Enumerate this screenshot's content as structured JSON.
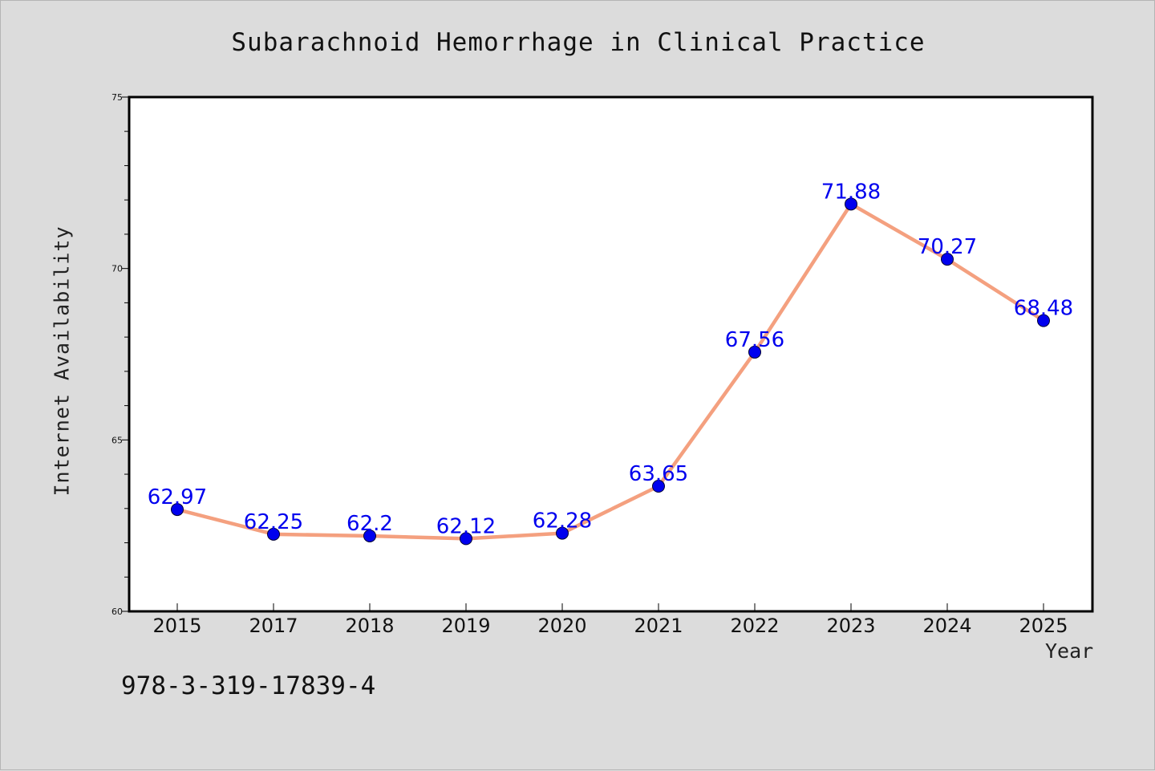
{
  "chart_data": {
    "type": "line",
    "title": "Subarachnoid Hemorrhage in Clinical Practice",
    "xlabel": "Year",
    "ylabel": "Internet Availability",
    "categories": [
      "2015",
      "2017",
      "2018",
      "2019",
      "2020",
      "2021",
      "2022",
      "2023",
      "2024",
      "2025"
    ],
    "series": [
      {
        "values": [
          62.97,
          62.25,
          62.2,
          62.12,
          62.28,
          63.65,
          67.56,
          71.88,
          70.27,
          68.48
        ]
      }
    ],
    "ylim": [
      60,
      75
    ],
    "yticks": [
      60,
      65,
      70,
      75
    ],
    "data_labels": [
      "62.97",
      "62.25",
      "62.2",
      "62.12",
      "62.28",
      "63.65",
      "67.56",
      "71.88",
      "70.27",
      "68.48"
    ],
    "grid": false,
    "legend": "none",
    "colors": {
      "line": "#f4a07f",
      "marker": "#0000ee",
      "label": "#0000ee",
      "plot_bg": "#ffffff",
      "figure_bg": "#dcdcdc"
    }
  },
  "footnote": "978-3-319-17839-4"
}
